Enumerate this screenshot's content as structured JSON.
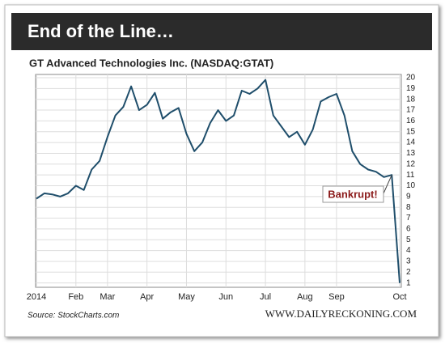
{
  "chart_data": {
    "type": "line",
    "title": "End of the Line…",
    "subtitle": "GT Advanced Technologies Inc. (NASDAQ:GTAT)",
    "categories": [
      "2014",
      null,
      null,
      null,
      null,
      "Feb",
      null,
      null,
      null,
      "Mar",
      null,
      null,
      null,
      null,
      "Apr",
      null,
      null,
      null,
      null,
      "May",
      null,
      null,
      null,
      null,
      "Jun",
      null,
      null,
      null,
      null,
      "Jul",
      null,
      null,
      null,
      null,
      "Aug",
      null,
      null,
      null,
      "Sep",
      null,
      null,
      null,
      null,
      null,
      null,
      null,
      "Oct"
    ],
    "series": [
      {
        "name": "GTAT",
        "color": "#1f4e6b",
        "values": [
          8.8,
          9.3,
          9.2,
          9.0,
          9.3,
          10.0,
          9.6,
          11.5,
          12.3,
          14.5,
          16.5,
          17.3,
          19.2,
          17.0,
          17.5,
          18.6,
          16.2,
          16.8,
          17.2,
          14.8,
          13.2,
          14.0,
          15.8,
          17.0,
          16.0,
          16.5,
          18.8,
          18.5,
          19.0,
          19.8,
          16.5,
          15.5,
          14.5,
          15.0,
          13.8,
          15.2,
          17.8,
          18.2,
          18.5,
          16.5,
          13.2,
          12.0,
          11.5,
          11.3,
          10.8,
          11.0,
          1.0
        ]
      }
    ],
    "ylim": [
      0.6,
      20.3
    ],
    "yticks": [
      1,
      2,
      3,
      4,
      5,
      6,
      7,
      8,
      9,
      10,
      11,
      12,
      13,
      14,
      15,
      16,
      17,
      18,
      19,
      20
    ],
    "grid": true,
    "annotation": "Bankrupt!",
    "source": "Source: StockCharts.com",
    "website": "WWW.DAILYRECKONING.COM"
  }
}
